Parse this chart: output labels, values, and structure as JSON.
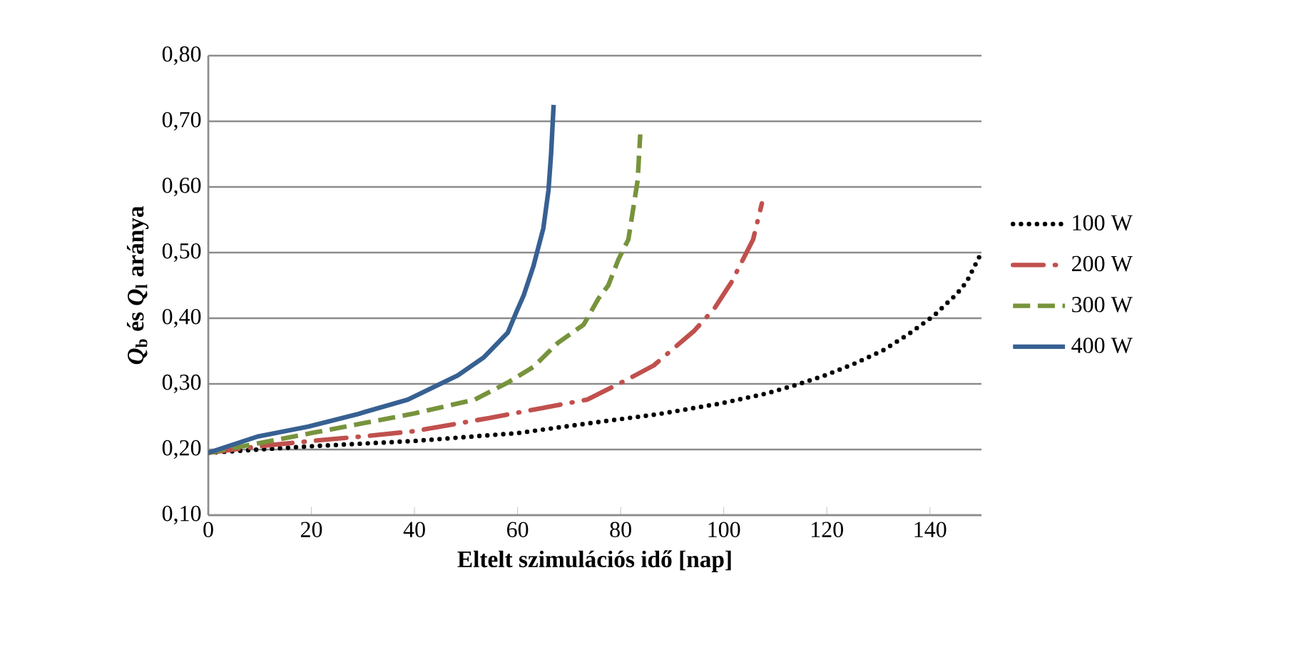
{
  "chart_data": {
    "type": "line",
    "xlabel": "Eltelt szimulációs idő [nap]",
    "ylabel": "*Q*$_{b}$ és *Q*$_{l}$ aránya",
    "xlim": [
      0,
      150
    ],
    "xticks": [
      0,
      20,
      40,
      60,
      80,
      100,
      120,
      140
    ],
    "ylim": [
      0.1,
      0.8
    ],
    "yticks": [
      {
        "value": 0.1,
        "label": "0,10"
      },
      {
        "value": 0.2,
        "label": "0,20"
      },
      {
        "value": 0.3,
        "label": "0,30"
      },
      {
        "value": 0.4,
        "label": "0,40"
      },
      {
        "value": 0.5,
        "label": "0,50"
      },
      {
        "value": 0.6,
        "label": "0,60"
      },
      {
        "value": 0.7,
        "label": "0,70"
      },
      {
        "value": 0.8,
        "label": "0,80"
      }
    ],
    "grid": "y",
    "legend": "right",
    "marker": "none",
    "series": [
      {
        "name": "100 W",
        "color": "#000000",
        "line_style": "dotted",
        "x": [
          0,
          20,
          40,
          60,
          75.8,
          87.4,
          99.3,
          108.1,
          113.9,
          119.7,
          125.4,
          130.9,
          135.9,
          140.8,
          145.2,
          147.1,
          150
        ],
        "values": [
          0.195,
          0.205,
          0.213,
          0.225,
          0.242,
          0.254,
          0.27,
          0.285,
          0.298,
          0.313,
          0.331,
          0.351,
          0.376,
          0.404,
          0.437,
          0.455,
          0.5
        ]
      },
      {
        "name": "200 W",
        "color": "#c0504d",
        "line_style": "dashdot",
        "x": [
          0,
          10,
          20,
          30,
          40,
          54.5,
          73.5,
          81.4,
          86.4,
          94.3,
          98.2,
          101.5,
          105.7,
          107.4
        ],
        "values": [
          0.195,
          0.205,
          0.213,
          0.22,
          0.228,
          0.248,
          0.276,
          0.307,
          0.328,
          0.381,
          0.415,
          0.455,
          0.52,
          0.575
        ]
      },
      {
        "name": "300 W",
        "color": "#77933c",
        "line_style": "dashed",
        "x": [
          0,
          10,
          20,
          30,
          40,
          51.7,
          58.1,
          63.1,
          67.9,
          72.8,
          75.7,
          77.6,
          79.6,
          81.5,
          83.3,
          83.8
        ],
        "values": [
          0.195,
          0.21,
          0.225,
          0.24,
          0.255,
          0.276,
          0.302,
          0.326,
          0.363,
          0.39,
          0.43,
          0.45,
          0.49,
          0.52,
          0.61,
          0.68
        ]
      },
      {
        "name": "400 W",
        "color": "#376092",
        "line_style": "solid",
        "x": [
          0,
          9.7,
          19.4,
          29,
          38.7,
          48.4,
          53.4,
          58.1,
          59.8,
          61.2,
          63.1,
          65,
          66,
          66.5,
          67
        ],
        "values": [
          0.195,
          0.22,
          0.235,
          0.254,
          0.276,
          0.313,
          0.34,
          0.378,
          0.41,
          0.435,
          0.48,
          0.537,
          0.595,
          0.65,
          0.725
        ]
      }
    ]
  }
}
